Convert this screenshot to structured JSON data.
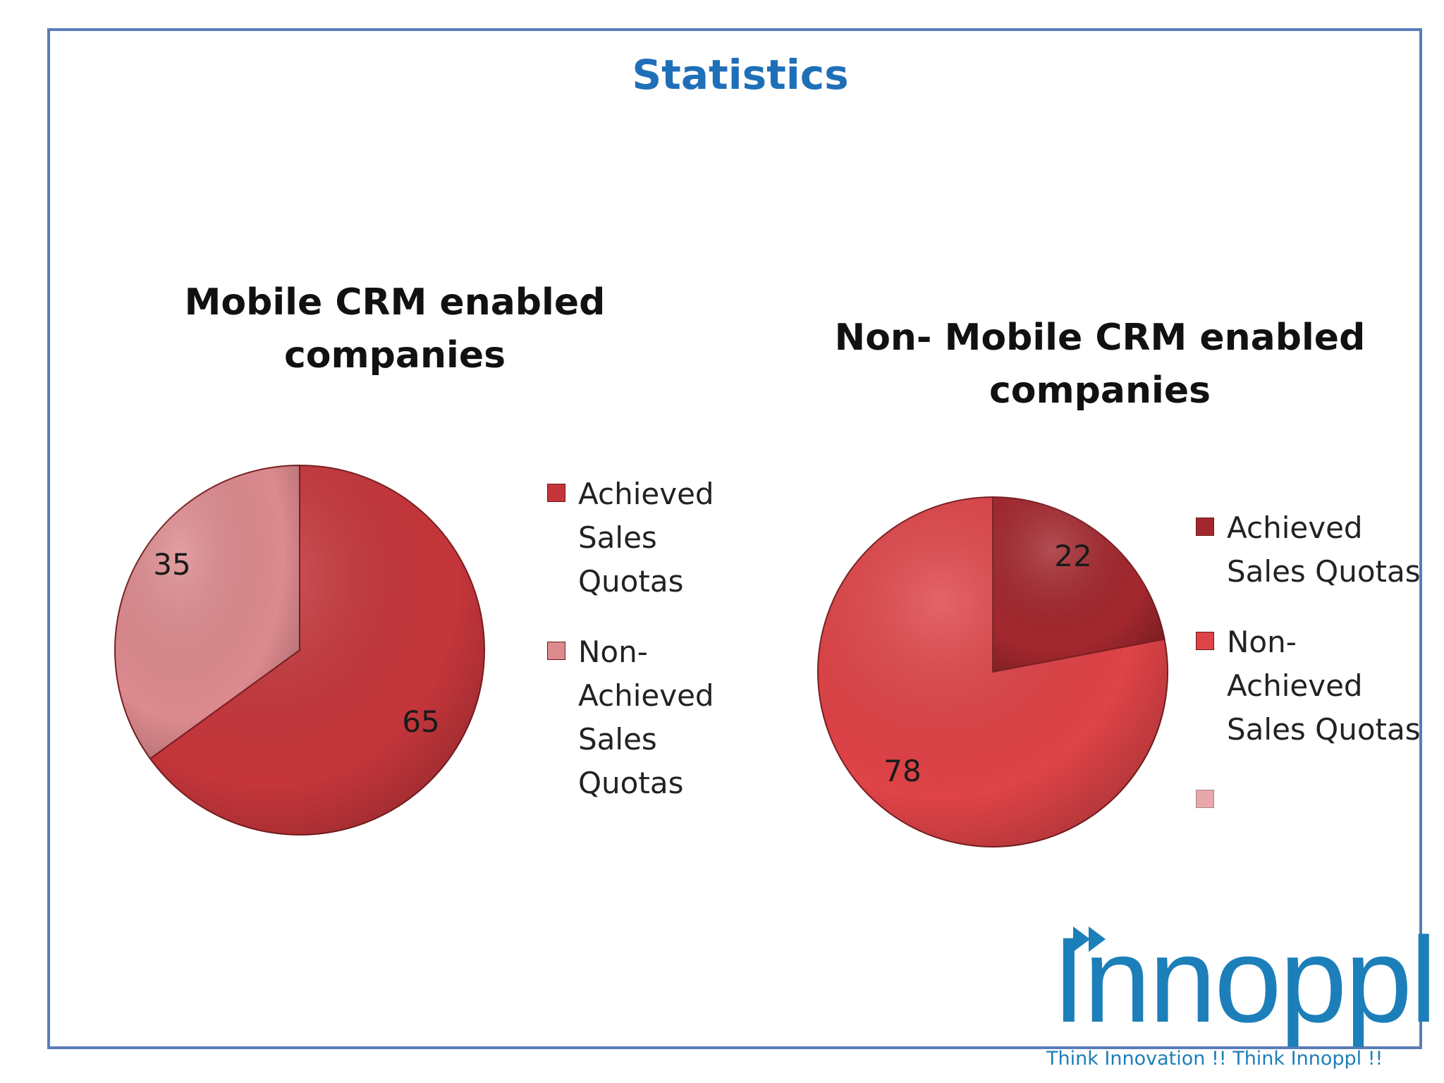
{
  "slide_title": "Statistics",
  "chart_data": [
    {
      "type": "pie",
      "title": "Mobile CRM enabled companies",
      "slices": [
        {
          "label": "Achieved Sales Quotas",
          "value": 65,
          "color": "#c5363b"
        },
        {
          "label": "Non-Achieved Sales Quotas",
          "value": 35,
          "color": "#dc8a8e"
        }
      ],
      "legend": [
        "Achieved Sales Quotas",
        "Non-Achieved Sales Quotas"
      ],
      "legend_position": "right"
    },
    {
      "type": "pie",
      "title": "Non- Mobile CRM enabled companies",
      "slices": [
        {
          "label": "Achieved Sales Quotas",
          "value": 22,
          "color": "#a3282e"
        },
        {
          "label": "Non-Achieved Sales Quotas",
          "value": 78,
          "color": "#de4347"
        }
      ],
      "legend": [
        "Achieved Sales Quotas",
        "Non-Achieved Sales Quotas",
        ""
      ],
      "legend_colors": [
        "#a3282e",
        "#de4347",
        "#e7a7ab"
      ],
      "legend_position": "right"
    }
  ],
  "logo": {
    "name": "Innoppl",
    "tagline": "Think Innovation !! Think Innoppl !!"
  }
}
